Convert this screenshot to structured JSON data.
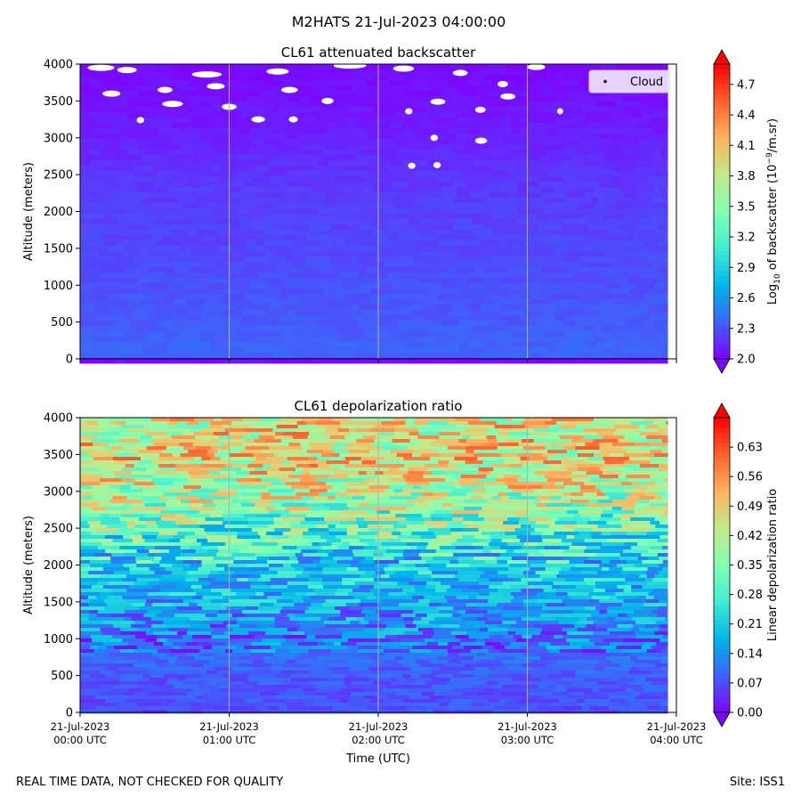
{
  "figure": {
    "title": "M2HATS 21-Jul-2023 04:00:00",
    "footer_left": "REAL TIME DATA, NOT CHECKED FOR QUALITY",
    "footer_right": "Site: ISS1"
  },
  "colors": {
    "rainbow": [
      "#8000ff",
      "#4062fa",
      "#00b5eb",
      "#40ecd4",
      "#80ffb4",
      "#c0eb8d",
      "#ffb360",
      "#ff6230",
      "#ff0000"
    ],
    "white": "#ffffff",
    "gridline": "#b0b0b0"
  },
  "chart_data": [
    {
      "type": "heatmap",
      "title": "CL61 attenuated backscatter",
      "xlabel": "Time (UTC)",
      "ylabel": "Altitude (meters)",
      "xlim": [
        0,
        4
      ],
      "x_units": "hours since 21-Jul-2023 00:00 UTC",
      "ylim": [
        0,
        4000
      ],
      "y_ticks": [
        0,
        500,
        1000,
        1500,
        2000,
        2500,
        3000,
        3500,
        4000
      ],
      "x_ticks": [
        0,
        1,
        2,
        3,
        4
      ],
      "x_tick_labels": [
        [
          "21-Jul-2023",
          "00:00 UTC"
        ],
        [
          "21-Jul-2023",
          "01:00 UTC"
        ],
        [
          "21-Jul-2023",
          "02:00 UTC"
        ],
        [
          "21-Jul-2023",
          "03:00 UTC"
        ],
        [
          "21-Jul-2023",
          "04:00 UTC"
        ]
      ],
      "data_end_hour": 3.94,
      "colorbar": {
        "label": "Log10 of backscatter (10^-9/m.sr)",
        "label_parts": [
          "Log",
          "10",
          " of backscatter (10",
          "−9",
          "/m.sr)"
        ],
        "vmin": 2.0,
        "vmax": 4.9,
        "ticks": [
          2.0,
          2.3,
          2.6,
          2.9,
          3.2,
          3.5,
          3.8,
          4.1,
          4.4,
          4.7
        ],
        "tick_labels": [
          "2.0",
          "2.3",
          "2.6",
          "2.9",
          "3.2",
          "3.5",
          "3.8",
          "4.1",
          "4.4",
          "4.7"
        ],
        "extend": "both"
      },
      "profile": [
        {
          "altitude": 0,
          "value": 2.35
        },
        {
          "altitude": 100,
          "value": 2.38
        },
        {
          "altitude": 500,
          "value": 2.33
        },
        {
          "altitude": 1000,
          "value": 2.3
        },
        {
          "altitude": 1500,
          "value": 2.26
        },
        {
          "altitude": 2000,
          "value": 2.24
        },
        {
          "altitude": 2500,
          "value": 2.2
        },
        {
          "altitude": 3000,
          "value": 2.12
        },
        {
          "altitude": 3500,
          "value": 2.07
        },
        {
          "altitude": 4000,
          "value": 2.03
        }
      ],
      "legend": {
        "label": "Cloud",
        "position": "top-right"
      },
      "cloud_gaps": [
        {
          "t": 0.05,
          "alt": 3950,
          "w": 0.18
        },
        {
          "t": 0.25,
          "alt": 3920,
          "w": 0.13
        },
        {
          "t": 0.75,
          "alt": 3860,
          "w": 0.2
        },
        {
          "t": 1.25,
          "alt": 3900,
          "w": 0.15
        },
        {
          "t": 1.7,
          "alt": 3980,
          "w": 0.22
        },
        {
          "t": 2.1,
          "alt": 3940,
          "w": 0.14
        },
        {
          "t": 2.5,
          "alt": 3880,
          "w": 0.1
        },
        {
          "t": 3.0,
          "alt": 3960,
          "w": 0.12
        },
        {
          "t": 0.15,
          "alt": 3600,
          "w": 0.12
        },
        {
          "t": 0.52,
          "alt": 3650,
          "w": 0.1
        },
        {
          "t": 0.85,
          "alt": 3700,
          "w": 0.12
        },
        {
          "t": 1.35,
          "alt": 3650,
          "w": 0.11
        },
        {
          "t": 0.55,
          "alt": 3460,
          "w": 0.14
        },
        {
          "t": 0.95,
          "alt": 3420,
          "w": 0.1
        },
        {
          "t": 1.62,
          "alt": 3500,
          "w": 0.08
        },
        {
          "t": 2.35,
          "alt": 3490,
          "w": 0.1
        },
        {
          "t": 2.82,
          "alt": 3560,
          "w": 0.1
        },
        {
          "t": 1.15,
          "alt": 3250,
          "w": 0.09
        },
        {
          "t": 1.4,
          "alt": 3250,
          "w": 0.06
        },
        {
          "t": 2.65,
          "alt": 3380,
          "w": 0.07
        },
        {
          "t": 0.38,
          "alt": 3240,
          "w": 0.05
        },
        {
          "t": 2.18,
          "alt": 3360,
          "w": 0.05
        },
        {
          "t": 2.35,
          "alt": 3000,
          "w": 0.05
        },
        {
          "t": 2.65,
          "alt": 2960,
          "w": 0.08
        },
        {
          "t": 2.2,
          "alt": 2620,
          "w": 0.05
        },
        {
          "t": 2.37,
          "alt": 2630,
          "w": 0.05
        },
        {
          "t": 3.2,
          "alt": 3360,
          "w": 0.04
        },
        {
          "t": 2.8,
          "alt": 3730,
          "w": 0.07
        }
      ]
    },
    {
      "type": "heatmap",
      "title": "CL61 depolarization ratio",
      "xlabel": "Time (UTC)",
      "ylabel": "Altitude (meters)",
      "xlim": [
        0,
        4
      ],
      "x_units": "hours since 21-Jul-2023 00:00 UTC",
      "ylim": [
        0,
        4000
      ],
      "y_ticks": [
        0,
        500,
        1000,
        1500,
        2000,
        2500,
        3000,
        3500,
        4000
      ],
      "x_ticks": [
        0,
        1,
        2,
        3,
        4
      ],
      "x_tick_labels": [
        [
          "21-Jul-2023",
          "00:00 UTC"
        ],
        [
          "21-Jul-2023",
          "01:00 UTC"
        ],
        [
          "21-Jul-2023",
          "02:00 UTC"
        ],
        [
          "21-Jul-2023",
          "03:00 UTC"
        ],
        [
          "21-Jul-2023",
          "04:00 UTC"
        ]
      ],
      "data_end_hour": 3.94,
      "colorbar": {
        "label": "Linear depolarization ratio",
        "label_parts": [
          "Linear depolarization ratio"
        ],
        "vmin": 0.0,
        "vmax": 0.7,
        "ticks": [
          0.0,
          0.07,
          0.14,
          0.21,
          0.28,
          0.35,
          0.42,
          0.49,
          0.56,
          0.63
        ],
        "tick_labels": [
          "0.00",
          "0.07",
          "0.14",
          "0.21",
          "0.28",
          "0.35",
          "0.42",
          "0.49",
          "0.56",
          "0.63"
        ],
        "extend": "both"
      },
      "profile": [
        {
          "altitude": 0,
          "value": 0.07
        },
        {
          "altitude": 500,
          "value": 0.08
        },
        {
          "altitude": 1000,
          "value": 0.11
        },
        {
          "altitude": 1500,
          "value": 0.16
        },
        {
          "altitude": 2000,
          "value": 0.22
        },
        {
          "altitude": 2500,
          "value": 0.32
        },
        {
          "altitude": 3000,
          "value": 0.42
        },
        {
          "altitude": 3500,
          "value": 0.47
        },
        {
          "altitude": 4000,
          "value": 0.45
        }
      ]
    }
  ]
}
